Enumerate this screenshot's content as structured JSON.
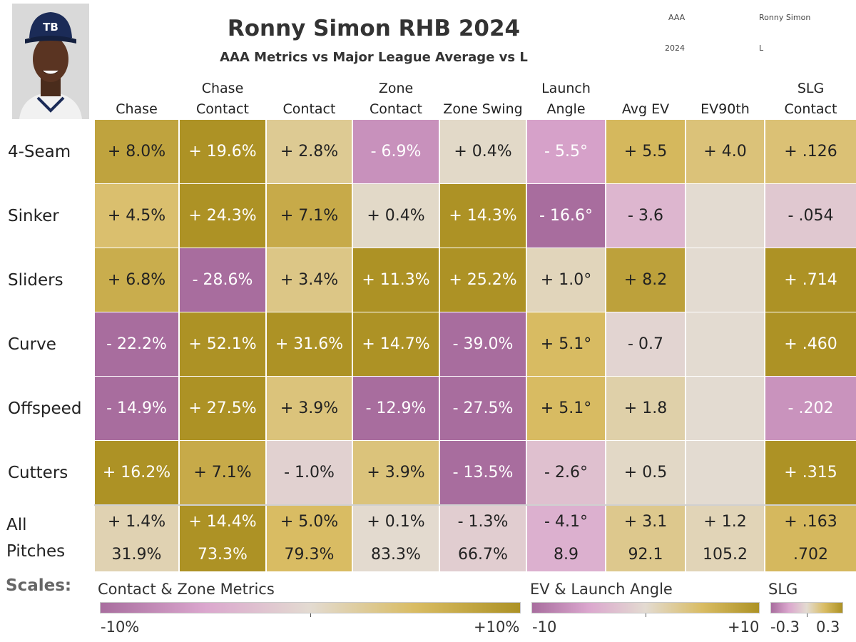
{
  "header": {
    "title": "Ronny Simon RHB 2024",
    "subtitle": "AAA Metrics vs Major League Average vs L",
    "meta_level": "AAA",
    "meta_player": "Ronny Simon",
    "meta_year": "2024",
    "meta_hand": "L"
  },
  "colors": {
    "neg_max": "#a86d9e",
    "neg_mid": "#dba7ce",
    "neutral": "#e3dbd1",
    "pos_mid": "#d9bc63",
    "pos_max": "#ad9225",
    "empty": "#e3dbd1"
  },
  "chart_data": {
    "type": "heatmap",
    "title": "Ronny Simon RHB 2024",
    "subtitle": "AAA Metrics vs Major League Average vs L",
    "columns": [
      {
        "key": "chase",
        "label_lines": [
          "Chase"
        ],
        "scale": "contact"
      },
      {
        "key": "chase_contact",
        "label_lines": [
          "Chase",
          "Contact"
        ],
        "scale": "contact"
      },
      {
        "key": "contact",
        "label_lines": [
          "Contact"
        ],
        "scale": "contact"
      },
      {
        "key": "zone_contact",
        "label_lines": [
          "Zone",
          "Contact"
        ],
        "scale": "contact"
      },
      {
        "key": "zone_swing",
        "label_lines": [
          "Zone Swing"
        ],
        "scale": "contact"
      },
      {
        "key": "launch_angle",
        "label_lines": [
          "Launch",
          "Angle"
        ],
        "scale": "ev"
      },
      {
        "key": "avg_ev",
        "label_lines": [
          "Avg EV"
        ],
        "scale": "ev"
      },
      {
        "key": "ev90th",
        "label_lines": [
          "EV90th"
        ],
        "scale": "ev"
      },
      {
        "key": "slg_contact",
        "label_lines": [
          "SLG",
          "Contact"
        ],
        "scale": "slg"
      }
    ],
    "rows": [
      {
        "label": "4-Seam",
        "values": [
          8.0,
          19.6,
          2.8,
          -6.9,
          0.4,
          -5.5,
          5.5,
          4.0,
          0.126
        ],
        "display": [
          "+ 8.0%",
          "+ 19.6%",
          "+ 2.8%",
          "- 6.9%",
          "+ 0.4%",
          "- 5.5°",
          "+ 5.5",
          "+ 4.0",
          "+ .126"
        ]
      },
      {
        "label": "Sinker",
        "values": [
          4.5,
          24.3,
          7.1,
          0.4,
          14.3,
          -16.6,
          -3.6,
          null,
          -0.054
        ],
        "display": [
          "+ 4.5%",
          "+ 24.3%",
          "+ 7.1%",
          "+ 0.4%",
          "+ 14.3%",
          "- 16.6°",
          "- 3.6",
          "",
          "- .054"
        ]
      },
      {
        "label": "Sliders",
        "values": [
          6.8,
          -28.6,
          3.4,
          11.3,
          25.2,
          1.0,
          8.2,
          null,
          0.714
        ],
        "display": [
          "+ 6.8%",
          "- 28.6%",
          "+ 3.4%",
          "+ 11.3%",
          "+ 25.2%",
          "+ 1.0°",
          "+ 8.2",
          "",
          "+ .714"
        ]
      },
      {
        "label": "Curve",
        "values": [
          -22.2,
          52.1,
          31.6,
          14.7,
          -39.0,
          5.1,
          -0.7,
          null,
          0.46
        ],
        "display": [
          "- 22.2%",
          "+ 52.1%",
          "+ 31.6%",
          "+ 14.7%",
          "- 39.0%",
          "+ 5.1°",
          "- 0.7",
          "",
          "+ .460"
        ]
      },
      {
        "label": "Offspeed",
        "values": [
          -14.9,
          27.5,
          3.9,
          -12.9,
          -27.5,
          5.1,
          1.8,
          null,
          -0.202
        ],
        "display": [
          "- 14.9%",
          "+ 27.5%",
          "+ 3.9%",
          "- 12.9%",
          "- 27.5%",
          "+ 5.1°",
          "+ 1.8",
          "",
          "- .202"
        ]
      },
      {
        "label": "Cutters",
        "values": [
          16.2,
          7.1,
          -1.0,
          3.9,
          -13.5,
          -2.6,
          0.5,
          null,
          0.315
        ],
        "display": [
          "+ 16.2%",
          "+ 7.1%",
          "- 1.0%",
          "+ 3.9%",
          "- 13.5%",
          "- 2.6°",
          "+ 0.5",
          "",
          "+ .315"
        ]
      }
    ],
    "summary_row": {
      "label_lines": [
        "All",
        "Pitches"
      ],
      "values": [
        1.4,
        14.4,
        5.0,
        0.1,
        -1.3,
        -4.1,
        3.1,
        1.2,
        0.163
      ],
      "display": [
        "+ 1.4%",
        "+ 14.4%",
        "+ 5.0%",
        "+ 0.1%",
        "- 1.3%",
        "- 4.1°",
        "+ 3.1",
        "+ 1.2",
        "+ .163"
      ],
      "totals": [
        "31.9%",
        "73.3%",
        "79.3%",
        "83.3%",
        "66.7%",
        "8.9",
        "92.1",
        "105.2",
        ".702"
      ]
    },
    "scales": {
      "label": "Scales:",
      "contact": {
        "title": "Contact & Zone Metrics",
        "min": -10,
        "max": 10,
        "min_label": "-10%",
        "max_label": "+10%"
      },
      "ev": {
        "title": "EV & Launch Angle",
        "min": -10,
        "max": 10,
        "min_label": "-10",
        "max_label": "+10"
      },
      "slg": {
        "title": "SLG",
        "min": -0.3,
        "max": 0.3,
        "min_label": "-0.3",
        "max_label": "0.3"
      }
    }
  }
}
